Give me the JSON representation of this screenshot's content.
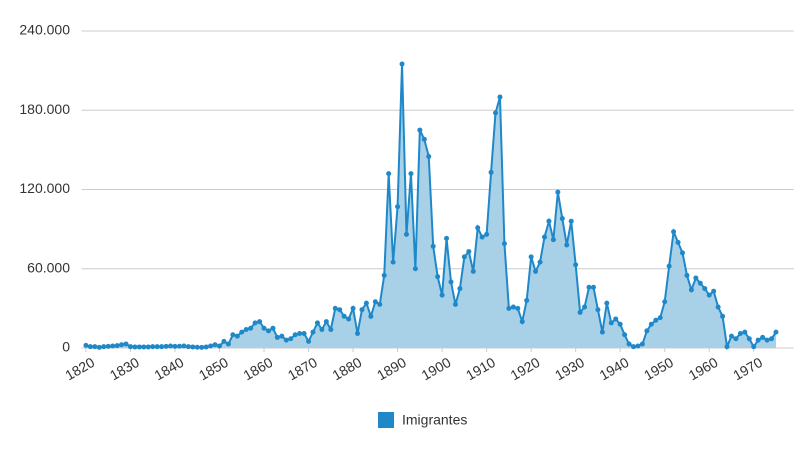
{
  "chart_data": {
    "type": "area",
    "x": [
      1820,
      1821,
      1822,
      1823,
      1824,
      1825,
      1826,
      1827,
      1828,
      1829,
      1830,
      1831,
      1832,
      1833,
      1834,
      1835,
      1836,
      1837,
      1838,
      1839,
      1840,
      1841,
      1842,
      1843,
      1844,
      1845,
      1846,
      1847,
      1848,
      1849,
      1850,
      1851,
      1852,
      1853,
      1854,
      1855,
      1856,
      1857,
      1858,
      1859,
      1860,
      1861,
      1862,
      1863,
      1864,
      1865,
      1866,
      1867,
      1868,
      1869,
      1870,
      1871,
      1872,
      1873,
      1874,
      1875,
      1876,
      1877,
      1878,
      1879,
      1880,
      1881,
      1882,
      1883,
      1884,
      1885,
      1886,
      1887,
      1888,
      1889,
      1890,
      1891,
      1892,
      1893,
      1894,
      1895,
      1896,
      1897,
      1898,
      1899,
      1900,
      1901,
      1902,
      1903,
      1904,
      1905,
      1906,
      1907,
      1908,
      1909,
      1910,
      1911,
      1912,
      1913,
      1914,
      1915,
      1916,
      1917,
      1918,
      1919,
      1920,
      1921,
      1922,
      1923,
      1924,
      1925,
      1926,
      1927,
      1928,
      1929,
      1930,
      1931,
      1932,
      1933,
      1934,
      1935,
      1936,
      1937,
      1938,
      1939,
      1940,
      1941,
      1942,
      1943,
      1944,
      1945,
      1946,
      1947,
      1948,
      1949,
      1950,
      1951,
      1952,
      1953,
      1954,
      1955,
      1956,
      1957,
      1958,
      1959,
      1960,
      1961,
      1962,
      1963,
      1964,
      1965,
      1966,
      1967,
      1968,
      1969,
      1970,
      1971,
      1972,
      1973,
      1974,
      1975
    ],
    "series": [
      {
        "name": "Imigrantes",
        "color": "#1f88c8",
        "fill": "#a8d1e8",
        "values": [
          2000,
          1000,
          1000,
          500,
          1000,
          1200,
          1500,
          1800,
          2500,
          3000,
          1000,
          800,
          800,
          800,
          800,
          1000,
          1000,
          1000,
          1200,
          1500,
          1200,
          1300,
          1500,
          1000,
          800,
          600,
          500,
          800,
          1500,
          2500,
          1500,
          5000,
          3000,
          10000,
          9000,
          12000,
          14000,
          15000,
          19000,
          20000,
          15000,
          13000,
          15000,
          8000,
          9000,
          6000,
          7000,
          10000,
          11000,
          11000,
          5000,
          12000,
          19000,
          14000,
          20000,
          14000,
          30000,
          29000,
          24000,
          22000,
          30000,
          11000,
          29000,
          34000,
          24000,
          35000,
          33000,
          55000,
          132000,
          65000,
          107000,
          215000,
          86000,
          132000,
          60000,
          165000,
          158000,
          145000,
          77000,
          54000,
          40000,
          83000,
          50000,
          33000,
          45000,
          69000,
          73000,
          58000,
          91000,
          84000,
          86000,
          133000,
          178000,
          190000,
          79000,
          30000,
          31000,
          30000,
          20000,
          36000,
          69000,
          58000,
          65000,
          84000,
          96000,
          82000,
          118000,
          98000,
          78000,
          96000,
          63000,
          27000,
          31000,
          46000,
          46000,
          29000,
          12000,
          34000,
          19000,
          22000,
          18000,
          10000,
          3000,
          1000,
          1500,
          3000,
          13000,
          18000,
          21000,
          23000,
          35000,
          62000,
          88000,
          80000,
          72000,
          55000,
          44000,
          53000,
          49000,
          45000,
          40000,
          43000,
          31000,
          24000,
          1000,
          9000,
          7000,
          11000,
          12000,
          7000,
          1000,
          6000,
          8000,
          6000,
          7000,
          12000
        ]
      }
    ],
    "xlim": [
      1819,
      1979
    ],
    "xticks": [
      1820,
      1830,
      1840,
      1850,
      1860,
      1870,
      1880,
      1890,
      1900,
      1910,
      1920,
      1930,
      1940,
      1950,
      1960,
      1970
    ],
    "ylim": [
      0,
      240000
    ],
    "yticks": [
      0,
      {
        "value": 60000,
        "label": "60.000"
      },
      {
        "value": 120000,
        "label": "120.000"
      },
      {
        "value": 180000,
        "label": "180.000"
      },
      {
        "value": 240000,
        "label": "240.000"
      }
    ],
    "grid": true,
    "legend": "bottom"
  }
}
